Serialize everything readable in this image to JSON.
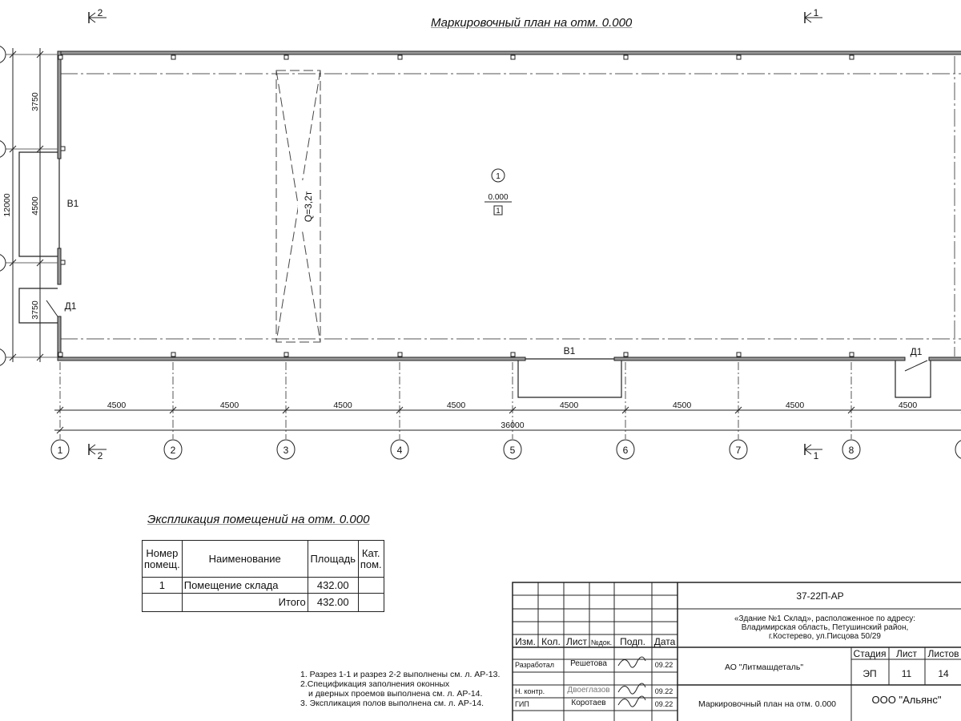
{
  "drawing_title": "Маркировочный план на отм. 0.000",
  "section_marks": [
    {
      "label": "2"
    },
    {
      "label": "1"
    }
  ],
  "axes_horizontal": [
    "1",
    "2",
    "3",
    "4",
    "5",
    "6",
    "7",
    "8"
  ],
  "axes_vertical_dims": {
    "total": "12000",
    "parts": [
      "3750",
      "4500",
      "3750"
    ]
  },
  "bay_dims": [
    "4500",
    "4500",
    "4500",
    "4500",
    "4500",
    "4500",
    "4500",
    "4500"
  ],
  "total_length": "36000",
  "openings": {
    "window": "В1",
    "door": "Д1"
  },
  "crane": "Q=3,2т",
  "room": {
    "number": "1",
    "level": "0.000",
    "floor_type": "1"
  },
  "explication": {
    "title": "Экспликация помещений на отм. 0.000",
    "headers": [
      "Номер помещ.",
      "Наименование",
      "Площадь",
      "Кат. пом."
    ],
    "rows": [
      {
        "num": "1",
        "name": "Помещение склада",
        "area": "432.00",
        "cat": ""
      }
    ],
    "total_label": "Итого",
    "total_area": "432.00"
  },
  "notes": [
    "1. Разрез 1-1 и разрез 2-2 выполнены см. л. АР-13.",
    "2.Спецификация заполнения оконных",
    "   и дверных проемов выполнена см. л. АР-14.",
    "3. Экспликация полов выполнена см. л. АР-14."
  ],
  "title_block": {
    "code": "37-22П-АР",
    "object": [
      "«Здание №1 Склад», расположенное по адресу:",
      "Владимирская область, Петушинский район,",
      "г.Костерево, ул.Писцова 50/29"
    ],
    "headers": [
      "Изм.",
      "Кол.",
      "Лист",
      "№док.",
      "Подп.",
      "Дата"
    ],
    "people": [
      {
        "role": "Разработал",
        "name": "Решетова",
        "date": "09.22"
      },
      {
        "role": "Н. контр.",
        "name": "Двоеглазов",
        "date": "09.22"
      },
      {
        "role": "ГИП",
        "name": "Коротаев",
        "date": "09.22"
      }
    ],
    "company": "АО \"Литмашдеталь\"",
    "stage_headers": [
      "Стадия",
      "Лист",
      "Листов"
    ],
    "stage": "ЭП",
    "sheet": "11",
    "sheets": "14",
    "sheet_title": "Маркировочный план на отм. 0.000",
    "org": "ООО \"Альянс\""
  }
}
